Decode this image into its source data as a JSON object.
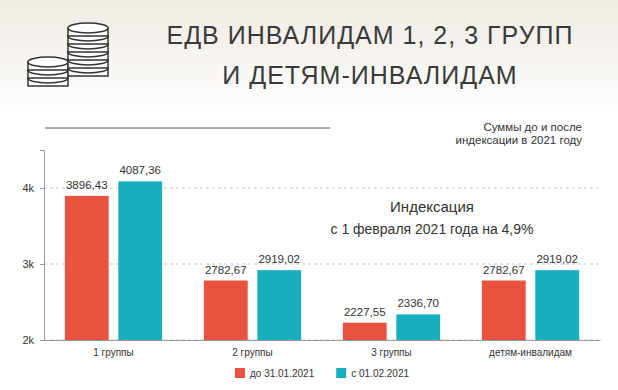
{
  "chart_data": {
    "type": "bar",
    "title": [
      "ЕДВ ИНВАЛИДАМ 1, 2, 3 ГРУПП",
      "И ДЕТЯМ-ИНВАЛИДАМ"
    ],
    "subtitle": [
      "Суммы до и после",
      "индексации в 2021 году"
    ],
    "annotation": [
      "Индексация",
      "с 1 февраля 2021 года на 4,9%"
    ],
    "categories": [
      "1 группы",
      "2 группы",
      "3 группы",
      "детям-инвалидам"
    ],
    "series": [
      {
        "name": "до 31.01.2021",
        "color": "#e9523e",
        "values": [
          3896.43,
          2782.67,
          2227.55,
          2782.67
        ],
        "value_labels": [
          "3896,43",
          "2782,67",
          "2227,55",
          "2782,67"
        ]
      },
      {
        "name": "с 01.02.2021",
        "color": "#17aebf",
        "values": [
          4087.36,
          2919.02,
          2336.7,
          2919.02
        ],
        "value_labels": [
          "4087,36",
          "2919,02",
          "2336,70",
          "2919,02"
        ]
      }
    ],
    "ylim": [
      2000,
      4500
    ],
    "yticks": [
      {
        "value": 2000,
        "label": "2k"
      },
      {
        "value": 3000,
        "label": "3k"
      },
      {
        "value": 4000,
        "label": "4k"
      }
    ],
    "grid": true,
    "legend": "bottom",
    "data_labels": true
  }
}
